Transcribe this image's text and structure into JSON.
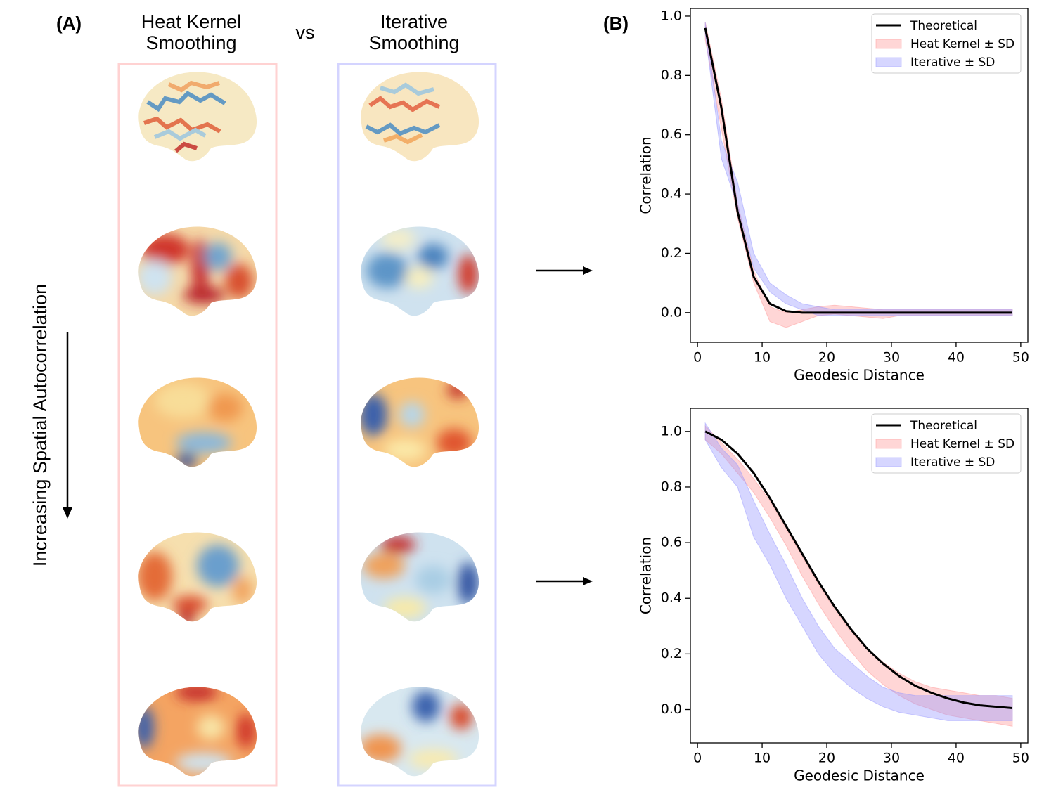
{
  "panel_a": {
    "label": "(A)",
    "left_title": [
      "Heat Kernel",
      "Smoothing"
    ],
    "versus": "vs",
    "right_title": [
      "Iterative",
      "Smoothing"
    ],
    "side_label": "Increasing Spatial Autocorrelation"
  },
  "panel_b": {
    "label": "(B)"
  },
  "chart_data": [
    {
      "type": "line",
      "xlabel": "Geodesic Distance",
      "ylabel": "Correlation",
      "x": [
        1.2,
        3.7,
        6.2,
        8.7,
        11.2,
        13.7,
        16.2,
        18.7,
        21.2,
        23.7,
        26.2,
        28.7,
        31.2,
        33.7,
        36.2,
        38.7,
        41.2,
        43.7,
        46.2,
        48.7
      ],
      "xlim": [
        -1.1,
        51.1
      ],
      "xticks": [
        0,
        10,
        20,
        30,
        40,
        50
      ],
      "ylim": [
        -0.1,
        1.026
      ],
      "yticks": [
        {
          "value": 0,
          "label": "0.0"
        },
        0.2,
        0.4,
        0.6,
        0.8,
        {
          "value": 1,
          "label": "1.0"
        }
      ],
      "legend": "upper right",
      "series": [
        {
          "name": "Heat Kernel ± SD",
          "color": "#ff9999",
          "lower": [
            0.92,
            0.62,
            0.32,
            0.1,
            -0.03,
            -0.05,
            -0.03,
            -0.01,
            -0.005,
            -0.01,
            -0.015,
            -0.02,
            -0.01,
            -0.01,
            -0.01,
            -0.01,
            -0.01,
            -0.01,
            -0.01,
            -0.01
          ],
          "upper": [
            0.98,
            0.72,
            0.37,
            0.14,
            0.02,
            0.0,
            0.01,
            0.02,
            0.025,
            0.02,
            0.015,
            0.01,
            0.01,
            0.01,
            0.01,
            0.01,
            0.01,
            0.01,
            0.01,
            0.01
          ]
        },
        {
          "name": "Iterative ± SD",
          "color": "#9999ff",
          "lower": [
            0.94,
            0.52,
            0.36,
            0.15,
            0.07,
            0.03,
            0.01,
            -0.01,
            -0.01,
            -0.01,
            -0.01,
            -0.01,
            -0.01,
            -0.01,
            -0.01,
            -0.01,
            -0.01,
            -0.01,
            -0.01,
            -0.01
          ],
          "upper": [
            0.98,
            0.58,
            0.44,
            0.2,
            0.1,
            0.06,
            0.03,
            0.02,
            0.01,
            0.01,
            0.01,
            0.01,
            0.01,
            0.01,
            0.01,
            0.01,
            0.01,
            0.01,
            0.01,
            0.01
          ]
        },
        {
          "name": "Theoretical",
          "color": "#000000",
          "values": [
            0.96,
            0.69,
            0.34,
            0.12,
            0.03,
            0.005,
            0,
            0,
            0,
            0,
            0,
            0,
            0,
            0,
            0,
            0,
            0,
            0,
            0,
            0
          ]
        }
      ]
    },
    {
      "type": "line",
      "xlabel": "Geodesic Distance",
      "ylabel": "Correlation",
      "x": [
        1.2,
        3.7,
        6.2,
        8.7,
        11.2,
        13.7,
        16.2,
        18.7,
        21.2,
        23.7,
        26.2,
        28.7,
        31.2,
        33.7,
        36.2,
        38.7,
        41.2,
        43.7,
        46.2,
        48.7
      ],
      "xlim": [
        -1.1,
        51.1
      ],
      "xticks": [
        0,
        10,
        20,
        30,
        40,
        50
      ],
      "ylim": [
        -0.12,
        1.083
      ],
      "yticks": [
        {
          "value": 0,
          "label": "0.0"
        },
        0.2,
        0.4,
        0.6,
        0.8,
        {
          "value": 1,
          "label": "1.0"
        }
      ],
      "legend": "upper right",
      "series": [
        {
          "name": "Heat Kernel ± SD",
          "color": "#ff9999",
          "lower": [
            0.97,
            0.92,
            0.85,
            0.78,
            0.69,
            0.59,
            0.48,
            0.38,
            0.29,
            0.21,
            0.14,
            0.09,
            0.05,
            0.02,
            0.0,
            -0.02,
            -0.03,
            -0.04,
            -0.05,
            -0.06
          ],
          "upper": [
            1.02,
            0.96,
            0.9,
            0.83,
            0.75,
            0.65,
            0.55,
            0.45,
            0.36,
            0.28,
            0.22,
            0.17,
            0.13,
            0.1,
            0.08,
            0.07,
            0.06,
            0.05,
            0.05,
            0.04
          ]
        },
        {
          "name": "Iterative ± SD",
          "color": "#9999ff",
          "lower": [
            0.97,
            0.87,
            0.8,
            0.62,
            0.52,
            0.4,
            0.3,
            0.2,
            0.13,
            0.08,
            0.04,
            0.01,
            -0.01,
            -0.02,
            -0.03,
            -0.04,
            -0.04,
            -0.04,
            -0.04,
            -0.04
          ],
          "upper": [
            1.03,
            0.94,
            0.88,
            0.75,
            0.63,
            0.52,
            0.4,
            0.3,
            0.22,
            0.17,
            0.12,
            0.08,
            0.06,
            0.05,
            0.05,
            0.05,
            0.05,
            0.05,
            0.05,
            0.05
          ]
        },
        {
          "name": "Theoretical",
          "color": "#000000",
          "values": [
            1.0,
            0.97,
            0.92,
            0.85,
            0.76,
            0.66,
            0.56,
            0.46,
            0.37,
            0.29,
            0.22,
            0.165,
            0.12,
            0.085,
            0.06,
            0.04,
            0.025,
            0.015,
            0.01,
            0.005
          ]
        }
      ]
    }
  ]
}
